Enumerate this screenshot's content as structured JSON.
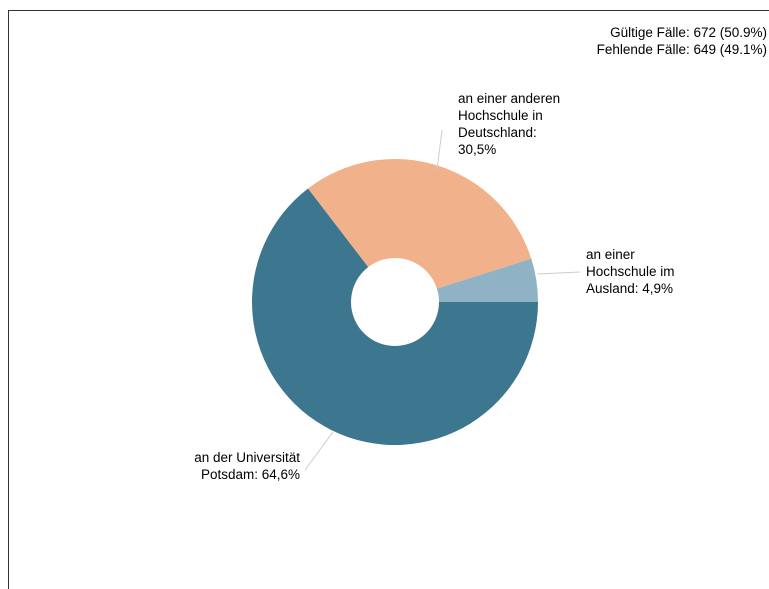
{
  "stats": {
    "valid": "Gültige Fälle: 672 (50.9%)",
    "missing": "Fehlende Fälle: 649 (49.1%)"
  },
  "chart_data": {
    "type": "pie",
    "donut": true,
    "slices": [
      {
        "key": "potsdam",
        "label_lines": [
          "an der Universität",
          "Potsdam: 64,6%"
        ],
        "value": 64.6,
        "color": "#3d778f"
      },
      {
        "key": "deutschland",
        "label_lines": [
          "an einer anderen",
          "Hochschule in",
          "Deutschland:",
          "30,5%"
        ],
        "value": 30.5,
        "color": "#f1b18b"
      },
      {
        "key": "ausland",
        "label_lines": [
          "an einer",
          "Hochschule im",
          "Ausland: 4,9%"
        ],
        "value": 4.9,
        "color": "#8fb3c4"
      }
    ]
  }
}
